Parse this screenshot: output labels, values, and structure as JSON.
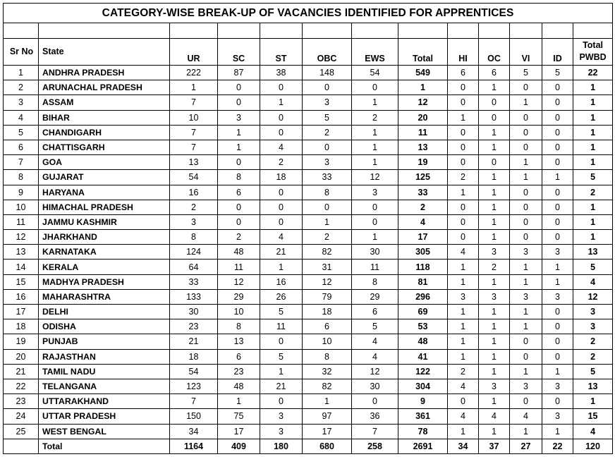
{
  "title": "CATEGORY-WISE BREAK-UP OF VACANCIES IDENTIFIED FOR APPRENTICES",
  "headers": {
    "sr": "Sr No",
    "state": "State",
    "ur": "UR",
    "sc": "SC",
    "st": "ST",
    "obc": "OBC",
    "ews": "EWS",
    "total": "Total",
    "hi": "HI",
    "oc": "OC",
    "vi": "VI",
    "id": "ID",
    "pwbd_line1": "Total",
    "pwbd_line2": "PWBD"
  },
  "rows": [
    [
      "1",
      "ANDHRA PRADESH",
      "222",
      "87",
      "38",
      "148",
      "54",
      "549",
      "6",
      "6",
      "5",
      "5",
      "22"
    ],
    [
      "2",
      "ARUNACHAL PRADESH",
      "1",
      "0",
      "0",
      "0",
      "0",
      "1",
      "0",
      "1",
      "0",
      "0",
      "1"
    ],
    [
      "3",
      "ASSAM",
      "7",
      "0",
      "1",
      "3",
      "1",
      "12",
      "0",
      "0",
      "1",
      "0",
      "1"
    ],
    [
      "4",
      "BIHAR",
      "10",
      "3",
      "0",
      "5",
      "2",
      "20",
      "1",
      "0",
      "0",
      "0",
      "1"
    ],
    [
      "5",
      "CHANDIGARH",
      "7",
      "1",
      "0",
      "2",
      "1",
      "11",
      "0",
      "1",
      "0",
      "0",
      "1"
    ],
    [
      "6",
      "CHATTISGARH",
      "7",
      "1",
      "4",
      "0",
      "1",
      "13",
      "0",
      "1",
      "0",
      "0",
      "1"
    ],
    [
      "7",
      "GOA",
      "13",
      "0",
      "2",
      "3",
      "1",
      "19",
      "0",
      "0",
      "1",
      "0",
      "1"
    ],
    [
      "8",
      "GUJARAT",
      "54",
      "8",
      "18",
      "33",
      "12",
      "125",
      "2",
      "1",
      "1",
      "1",
      "5"
    ],
    [
      "9",
      "HARYANA",
      "16",
      "6",
      "0",
      "8",
      "3",
      "33",
      "1",
      "1",
      "0",
      "0",
      "2"
    ],
    [
      "10",
      "HIMACHAL PRADESH",
      "2",
      "0",
      "0",
      "0",
      "0",
      "2",
      "0",
      "1",
      "0",
      "0",
      "1"
    ],
    [
      "11",
      "JAMMU KASHMIR",
      "3",
      "0",
      "0",
      "1",
      "0",
      "4",
      "0",
      "1",
      "0",
      "0",
      "1"
    ],
    [
      "12",
      "JHARKHAND",
      "8",
      "2",
      "4",
      "2",
      "1",
      "17",
      "0",
      "1",
      "0",
      "0",
      "1"
    ],
    [
      "13",
      "KARNATAKA",
      "124",
      "48",
      "21",
      "82",
      "30",
      "305",
      "4",
      "3",
      "3",
      "3",
      "13"
    ],
    [
      "14",
      "KERALA",
      "64",
      "11",
      "1",
      "31",
      "11",
      "118",
      "1",
      "2",
      "1",
      "1",
      "5"
    ],
    [
      "15",
      "MADHYA PRADESH",
      "33",
      "12",
      "16",
      "12",
      "8",
      "81",
      "1",
      "1",
      "1",
      "1",
      "4"
    ],
    [
      "16",
      "MAHARASHTRA",
      "133",
      "29",
      "26",
      "79",
      "29",
      "296",
      "3",
      "3",
      "3",
      "3",
      "12"
    ],
    [
      "17",
      "DELHI",
      "30",
      "10",
      "5",
      "18",
      "6",
      "69",
      "1",
      "1",
      "1",
      "0",
      "3"
    ],
    [
      "18",
      "ODISHA",
      "23",
      "8",
      "11",
      "6",
      "5",
      "53",
      "1",
      "1",
      "1",
      "0",
      "3"
    ],
    [
      "19",
      "PUNJAB",
      "21",
      "13",
      "0",
      "10",
      "4",
      "48",
      "1",
      "1",
      "0",
      "0",
      "2"
    ],
    [
      "20",
      "RAJASTHAN",
      "18",
      "6",
      "5",
      "8",
      "4",
      "41",
      "1",
      "1",
      "0",
      "0",
      "2"
    ],
    [
      "21",
      "TAMIL NADU",
      "54",
      "23",
      "1",
      "32",
      "12",
      "122",
      "2",
      "1",
      "1",
      "1",
      "5"
    ],
    [
      "22",
      "TELANGANA",
      "123",
      "48",
      "21",
      "82",
      "30",
      "304",
      "4",
      "3",
      "3",
      "3",
      "13"
    ],
    [
      "23",
      "UTTARAKHAND",
      "7",
      "1",
      "0",
      "1",
      "0",
      "9",
      "0",
      "1",
      "0",
      "0",
      "1"
    ],
    [
      "24",
      "UTTAR PRADESH",
      "150",
      "75",
      "3",
      "97",
      "36",
      "361",
      "4",
      "4",
      "4",
      "3",
      "15"
    ],
    [
      "25",
      "WEST BENGAL",
      "34",
      "17",
      "3",
      "17",
      "7",
      "78",
      "1",
      "1",
      "1",
      "1",
      "4"
    ]
  ],
  "totals": [
    "",
    "Total",
    "1164",
    "409",
    "180",
    "680",
    "258",
    "2691",
    "34",
    "37",
    "27",
    "22",
    "120"
  ]
}
